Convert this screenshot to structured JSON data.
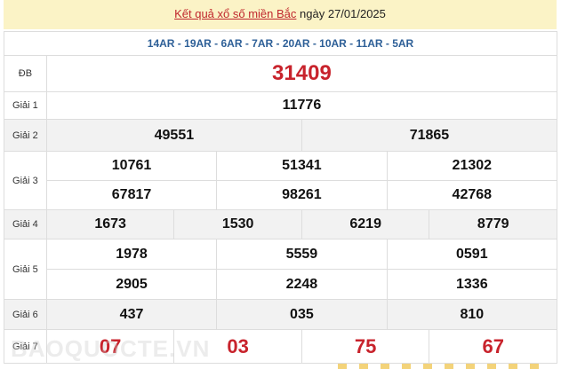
{
  "header": {
    "link": "Kết quả xổ số miền Bắc",
    "date": "ngày 27/01/2025"
  },
  "codes": "14AR - 19AR - 6AR - 7AR - 20AR - 10AR - 11AR - 5AR",
  "labels": [
    "ĐB",
    "Giải 1",
    "Giải 2",
    "Giải 3",
    "Giải 4",
    "Giải 5",
    "Giải 6",
    "Giải 7"
  ],
  "db": "31409",
  "g1": "11776",
  "g2": [
    "49551",
    "71865"
  ],
  "g3": [
    "10761",
    "51341",
    "21302",
    "67817",
    "98261",
    "42768"
  ],
  "g4": [
    "1673",
    "1530",
    "6219",
    "8779"
  ],
  "g5": [
    "1978",
    "5559",
    "0591",
    "2905",
    "2248",
    "1336"
  ],
  "g6": [
    "437",
    "035",
    "810"
  ],
  "g7": [
    "07",
    "03",
    "75",
    "67"
  ],
  "watermark": "BAOQUOCTE.VN",
  "colors": {
    "accent": "#c8232c",
    "codes": "#2d5f97",
    "header_bg": "#fbf3c6"
  }
}
